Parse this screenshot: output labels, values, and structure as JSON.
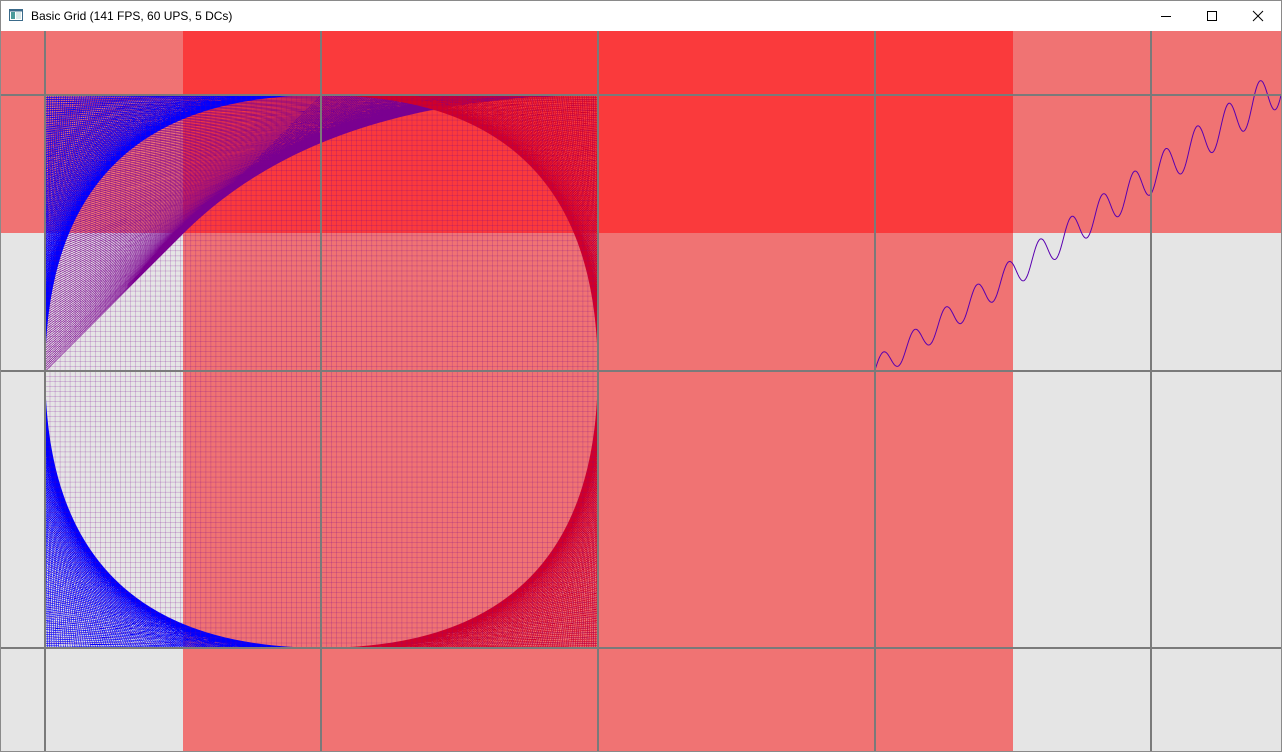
{
  "window": {
    "title": "Basic Grid (141 FPS, 60 UPS, 5 DCs)",
    "icons": {
      "app": "window-app-icon",
      "minimize": "minimize-icon",
      "maximize": "maximize-icon",
      "close": "close-icon"
    }
  },
  "colors": {
    "background": "#e5e5e5",
    "grid_line": "#7a7a7a",
    "overlay_light": "#f07373",
    "overlay_dark": "#fa3a3c",
    "curve_blue": "#0000ff",
    "curve_mix": "#7a0090",
    "curve_red": "#d0002a",
    "wave": "#5a00b0"
  }
}
